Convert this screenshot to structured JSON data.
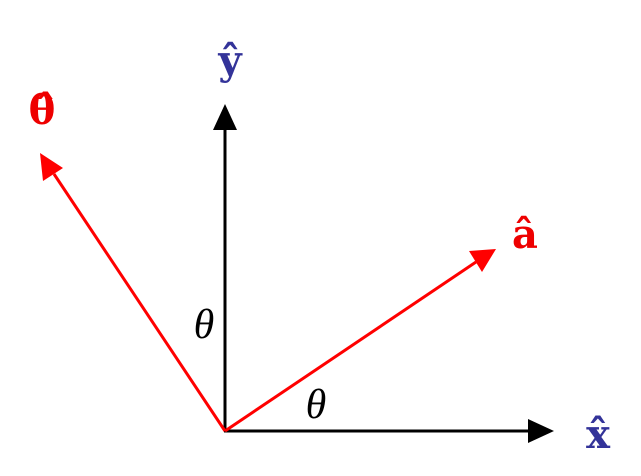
{
  "labels": {
    "y_axis": "ŷ",
    "theta_hat": "θ̂",
    "a_hat": "â",
    "x_axis": "x̂",
    "angle_left": "θ",
    "angle_right": "θ"
  }
}
